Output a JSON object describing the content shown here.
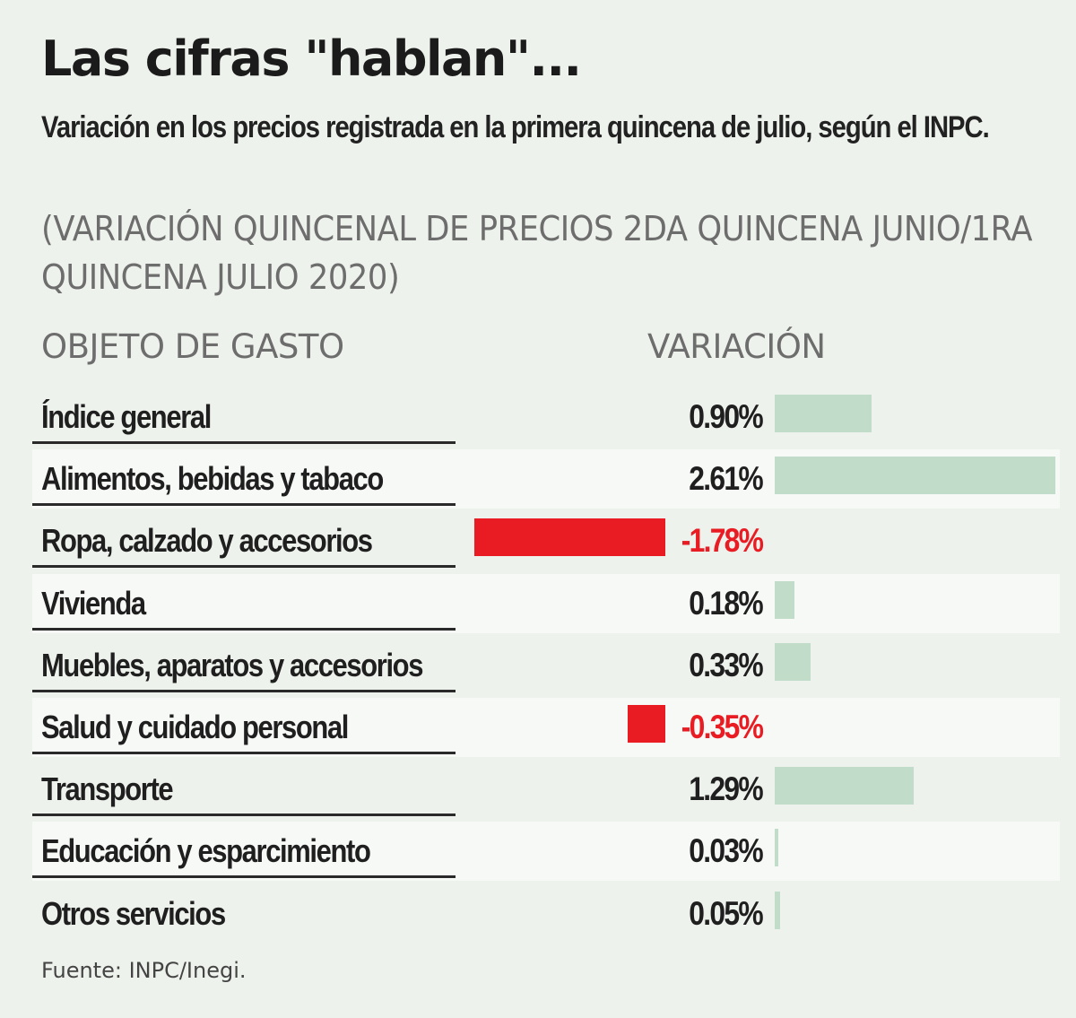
{
  "title": "Las cifras \"hablan\"...",
  "subtitle": "Variación en los precios registrada en la primera quincena de julio, según el INPC.",
  "note": "(VARIACIÓN QUINCENAL DE PRECIOS 2DA QUINCENA JUNIO/1RA QUINCENA JULIO 2020)",
  "columns": {
    "category": "OBJETO DE GASTO",
    "value": "VARIACIÓN"
  },
  "source": "Fuente: INPC/Inegi.",
  "colors": {
    "positive": "#c1dcc8",
    "negative": "#e91c24",
    "negative_text": "#e91c24",
    "text": "#1f1f1f"
  },
  "chart_data": {
    "type": "bar",
    "orientation": "horizontal",
    "title": "Las cifras \"hablan\"...",
    "categories": [
      "Índice general",
      "Alimentos, bebidas y tabaco",
      "Ropa, calzado y accesorios",
      "Vivienda",
      "Muebles, aparatos y accesorios",
      "Salud y cuidado personal",
      "Transporte",
      "Educación y esparcimiento",
      "Otros servicios"
    ],
    "values": [
      0.9,
      2.61,
      -1.78,
      0.18,
      0.33,
      -0.35,
      1.29,
      0.03,
      0.05
    ],
    "value_labels": [
      "0.90%",
      "2.61%",
      "-1.78%",
      "0.18%",
      "0.33%",
      "-0.35%",
      "1.29%",
      "0.03%",
      "0.05%"
    ],
    "unit": "%",
    "grid": false,
    "legend": "none"
  }
}
